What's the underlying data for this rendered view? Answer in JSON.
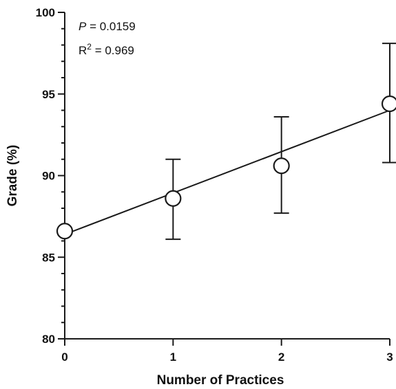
{
  "chart_data": {
    "type": "scatter",
    "xlabel": "Number of Practices",
    "ylabel": "Grade (%)",
    "xlim": [
      0,
      3
    ],
    "ylim": [
      80,
      100
    ],
    "x_ticks": [
      "0",
      "1",
      "2",
      "3"
    ],
    "y_ticks": [
      "80",
      "85",
      "90",
      "95",
      "100"
    ],
    "points": [
      {
        "x": 0,
        "y": 86.6,
        "err_low": null,
        "err_high": null
      },
      {
        "x": 1,
        "y": 88.6,
        "err_low": 86.1,
        "err_high": 91.0
      },
      {
        "x": 2,
        "y": 90.6,
        "err_low": 87.7,
        "err_high": 93.6
      },
      {
        "x": 3,
        "y": 94.4,
        "err_low": 90.8,
        "err_high": 98.1
      }
    ],
    "fit_line": {
      "x": [
        0,
        3
      ],
      "y": [
        86.4,
        94.0
      ]
    },
    "annotations": {
      "p_label": "P",
      "p_value": " = 0.0159",
      "r2_label": "R",
      "r2_sup": "2",
      "r2_value": " = 0.969"
    },
    "grid": false,
    "legend": "none"
  }
}
